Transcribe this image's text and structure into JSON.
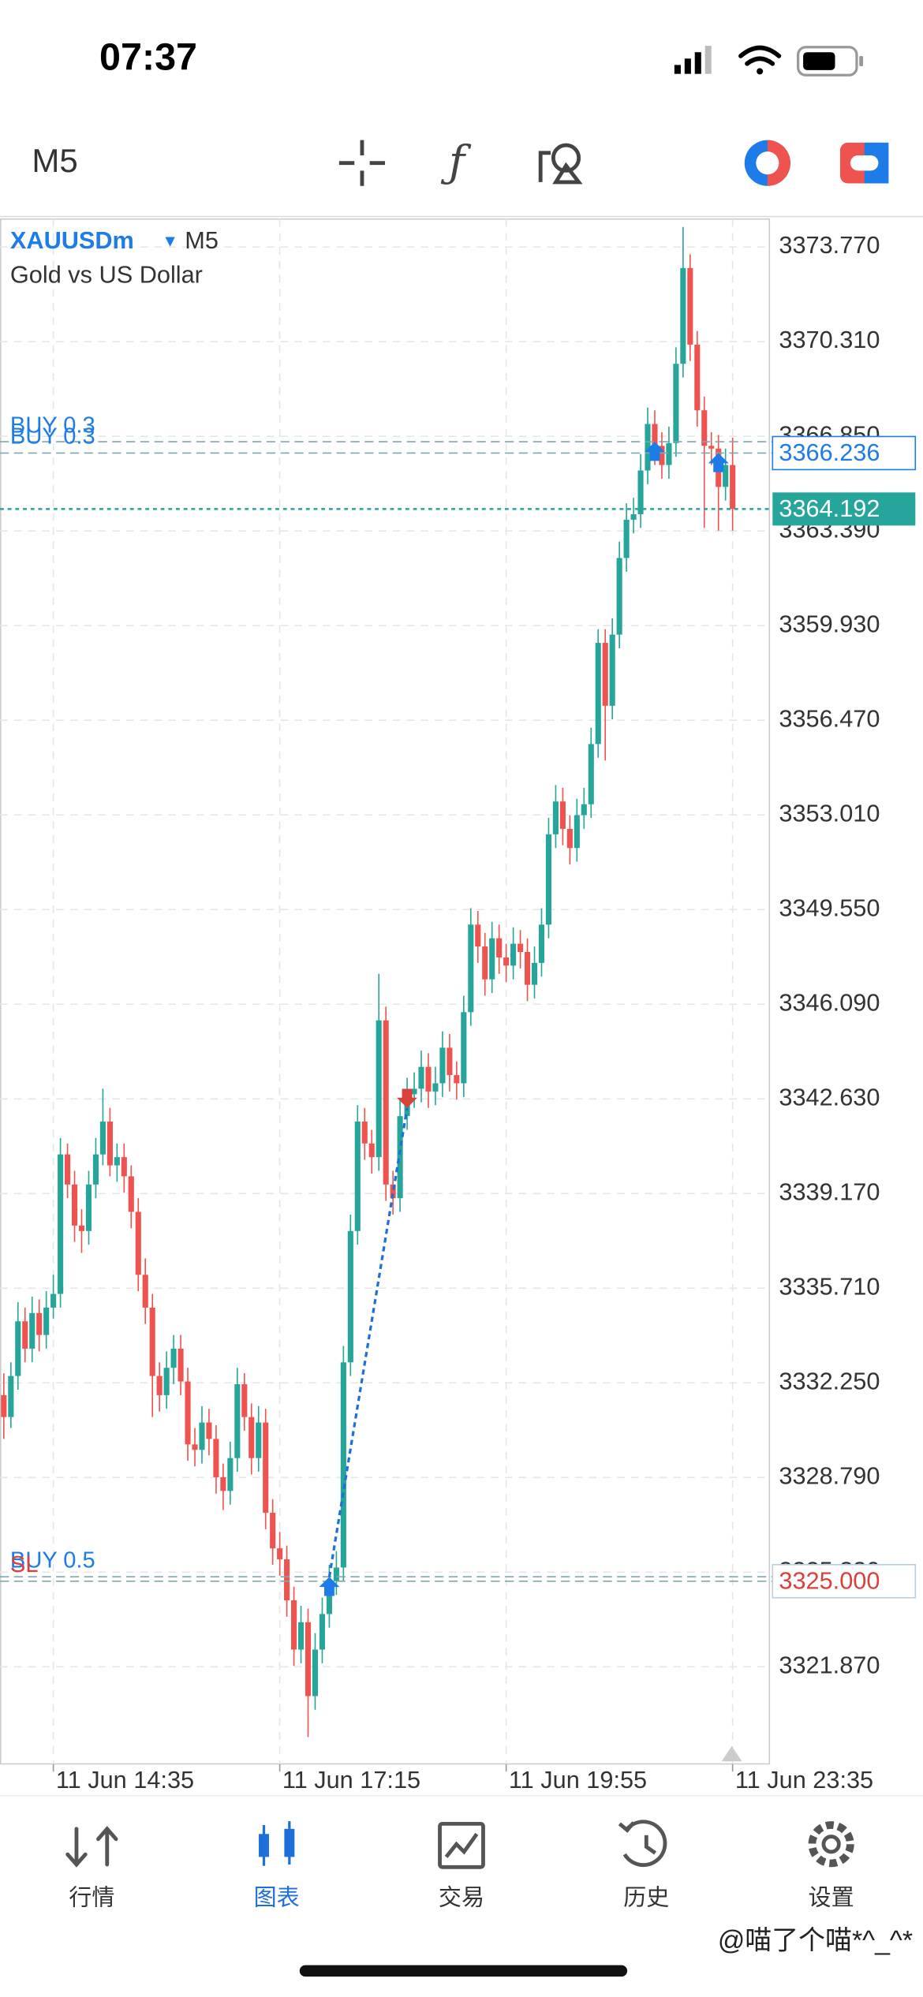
{
  "status_bar": {
    "time": "07:37"
  },
  "toolbar": {
    "timeframe": "M5"
  },
  "chart_data": {
    "type": "candlestick",
    "symbol": "XAUUSDm",
    "timeframe": "M5",
    "description": "Gold vs US Dollar",
    "categories": [
      null,
      null,
      null,
      null,
      null,
      null,
      null,
      "11 Jun 14:35",
      null,
      null,
      null,
      null,
      null,
      null,
      null,
      null,
      null,
      null,
      null,
      null,
      null,
      null,
      null,
      null,
      null,
      null,
      null,
      null,
      null,
      null,
      null,
      null,
      null,
      null,
      null,
      null,
      null,
      null,
      null,
      "11 Jun 17:15",
      null,
      null,
      null,
      null,
      null,
      null,
      null,
      null,
      null,
      null,
      null,
      null,
      null,
      null,
      null,
      null,
      null,
      null,
      null,
      null,
      null,
      null,
      null,
      null,
      null,
      null,
      null,
      null,
      null,
      null,
      null,
      "11 Jun 19:55",
      null,
      null,
      null,
      null,
      null,
      null,
      null,
      null,
      null,
      null,
      null,
      null,
      null,
      null,
      null,
      null,
      null,
      null,
      null,
      null,
      null,
      null,
      null,
      null,
      null,
      null,
      null,
      null,
      null,
      null,
      null,
      "11 Jun 23:35"
    ],
    "open": [
      3331.8,
      3331.0,
      3332.5,
      3334.5,
      3333.5,
      3334.8,
      3334.0,
      3335.0,
      3335.5,
      3340.6,
      3339.5,
      3338.0,
      3337.8,
      3339.5,
      3340.6,
      3341.8,
      3340.2,
      3340.5,
      3339.8,
      3338.5,
      3336.2,
      3335.0,
      3332.5,
      3331.8,
      3332.8,
      3333.5,
      3332.3,
      3330.0,
      3329.8,
      3330.8,
      3330.2,
      3328.8,
      3328.3,
      3329.5,
      3332.2,
      3331.0,
      3329.5,
      3330.8,
      3327.5,
      3326.2,
      3325.8,
      3324.3,
      3322.5,
      3323.5,
      3320.8,
      3322.5,
      3323.8,
      3325.0,
      3325.5,
      3333.0,
      3337.8,
      3341.8,
      3341.0,
      3340.5,
      3345.5,
      3339.5,
      3339.0,
      3342.0,
      3342.8,
      3343.0,
      3343.8,
      3342.9,
      3343.2,
      3344.5,
      3343.5,
      3343.2,
      3345.8,
      3349.0,
      3348.2,
      3347.0,
      3348.5,
      3347.8,
      3347.5,
      3348.3,
      3348.0,
      3346.8,
      3347.6,
      3349.0,
      3352.3,
      3353.5,
      3352.5,
      3351.8,
      3353.0,
      3353.4,
      3355.6,
      3359.3,
      3357.0,
      3359.6,
      3362.4,
      3363.8,
      3364.0,
      3365.6,
      3367.3,
      3366.5,
      3365.8,
      3366.6,
      3369.5,
      3373.0,
      3370.2,
      3367.8,
      3366.5,
      3366.4,
      3365.0,
      3365.8
    ],
    "high": [
      3332.6,
      3333.0,
      3335.2,
      3335.0,
      3335.4,
      3335.3,
      3335.6,
      3336.2,
      3341.2,
      3341.0,
      3340.0,
      3338.6,
      3340.0,
      3341.2,
      3343.0,
      3342.3,
      3341.0,
      3341.0,
      3340.2,
      3339.0,
      3336.8,
      3335.5,
      3333.0,
      3333.4,
      3334.0,
      3334.0,
      3332.8,
      3330.6,
      3331.4,
      3331.3,
      3330.7,
      3329.3,
      3330.1,
      3332.8,
      3332.6,
      3331.5,
      3331.4,
      3331.3,
      3328.0,
      3326.8,
      3326.3,
      3324.8,
      3324.1,
      3324.0,
      3323.1,
      3324.4,
      3325.6,
      3326.1,
      3333.6,
      3338.4,
      3342.4,
      3342.3,
      3341.5,
      3347.2,
      3346.0,
      3340.0,
      3342.6,
      3343.4,
      3343.6,
      3344.4,
      3344.3,
      3343.8,
      3345.1,
      3345.0,
      3344.0,
      3346.4,
      3349.6,
      3349.5,
      3348.7,
      3349.1,
      3349.0,
      3348.3,
      3348.9,
      3348.8,
      3348.5,
      3348.2,
      3349.6,
      3352.9,
      3354.1,
      3354.0,
      3353.0,
      3353.6,
      3354.0,
      3356.2,
      3359.8,
      3359.8,
      3360.2,
      3363.0,
      3364.4,
      3364.6,
      3366.2,
      3367.9,
      3367.8,
      3367.0,
      3367.2,
      3370.1,
      3374.5,
      3373.5,
      3370.7,
      3368.3,
      3367.0,
      3366.9,
      3366.4,
      3366.8
    ],
    "low": [
      3330.2,
      3330.6,
      3332.0,
      3333.0,
      3333.0,
      3333.4,
      3333.5,
      3334.6,
      3335.0,
      3339.0,
      3337.4,
      3337.0,
      3337.3,
      3339.0,
      3340.2,
      3339.8,
      3339.6,
      3339.2,
      3337.9,
      3335.6,
      3334.4,
      3331.0,
      3331.2,
      3331.3,
      3332.2,
      3331.8,
      3329.4,
      3329.2,
      3329.3,
      3329.6,
      3328.2,
      3327.6,
      3327.8,
      3329.0,
      3330.5,
      3328.9,
      3329.0,
      3326.9,
      3325.6,
      3325.2,
      3323.7,
      3321.9,
      3322.0,
      3319.3,
      3320.3,
      3322.0,
      3323.3,
      3324.5,
      3325.0,
      3332.5,
      3337.3,
      3340.4,
      3339.9,
      3340.0,
      3338.9,
      3338.4,
      3338.5,
      3341.5,
      3342.3,
      3342.5,
      3342.3,
      3342.4,
      3342.7,
      3342.9,
      3342.6,
      3342.7,
      3345.3,
      3347.6,
      3346.4,
      3346.5,
      3347.2,
      3346.9,
      3347.0,
      3347.4,
      3346.2,
      3346.3,
      3347.1,
      3348.5,
      3351.8,
      3351.9,
      3351.2,
      3351.3,
      3352.5,
      3352.9,
      3355.1,
      3355.0,
      3356.5,
      3359.1,
      3361.9,
      3363.3,
      3363.5,
      3365.1,
      3365.8,
      3365.3,
      3365.3,
      3366.1,
      3369.0,
      3369.6,
      3367.2,
      3363.5,
      3365.8,
      3363.4,
      3364.5,
      3363.4
    ],
    "close": [
      3331.0,
      3332.5,
      3334.5,
      3333.5,
      3334.8,
      3334.0,
      3335.0,
      3335.5,
      3340.6,
      3339.5,
      3338.0,
      3337.8,
      3339.5,
      3340.6,
      3341.8,
      3340.2,
      3340.5,
      3339.8,
      3338.5,
      3336.2,
      3335.0,
      3332.5,
      3331.8,
      3332.8,
      3333.5,
      3332.3,
      3330.0,
      3329.8,
      3330.8,
      3330.2,
      3328.8,
      3328.3,
      3329.5,
      3332.2,
      3331.0,
      3329.5,
      3330.8,
      3327.5,
      3326.2,
      3325.8,
      3324.3,
      3322.5,
      3323.5,
      3320.8,
      3322.5,
      3323.8,
      3325.0,
      3325.5,
      3333.0,
      3337.8,
      3341.8,
      3341.0,
      3340.5,
      3345.5,
      3339.5,
      3339.0,
      3342.0,
      3342.8,
      3343.0,
      3343.8,
      3342.9,
      3343.2,
      3344.5,
      3343.5,
      3343.2,
      3345.8,
      3349.0,
      3348.2,
      3347.0,
      3348.5,
      3347.8,
      3347.5,
      3348.3,
      3348.0,
      3346.8,
      3347.6,
      3349.0,
      3352.3,
      3353.5,
      3352.5,
      3351.8,
      3353.0,
      3353.4,
      3355.6,
      3359.3,
      3357.0,
      3359.6,
      3362.4,
      3363.8,
      3364.0,
      3365.6,
      3367.3,
      3366.5,
      3365.8,
      3366.6,
      3369.5,
      3373.0,
      3370.2,
      3367.8,
      3366.5,
      3366.4,
      3365.0,
      3365.8,
      3364.192
    ],
    "up_color": "#26a69a",
    "down_color": "#ef5350",
    "ylim": [
      3318.32,
      3374.79
    ],
    "yticks": [
      {
        "value": 3373.77,
        "label": "3373.770"
      },
      {
        "value": 3370.31,
        "label": "3370.310"
      },
      {
        "value": 3366.85,
        "label": "3366.850"
      },
      {
        "value": 3363.39,
        "label": "3363.390"
      },
      {
        "value": 3359.93,
        "label": "3359.930"
      },
      {
        "value": 3356.47,
        "label": "3356.470"
      },
      {
        "value": 3353.01,
        "label": "3353.010"
      },
      {
        "value": 3349.55,
        "label": "3349.550"
      },
      {
        "value": 3346.09,
        "label": "3346.090"
      },
      {
        "value": 3342.63,
        "label": "3342.630"
      },
      {
        "value": 3339.17,
        "label": "3339.170"
      },
      {
        "value": 3335.71,
        "label": "3335.710"
      },
      {
        "value": 3332.25,
        "label": "3332.250"
      },
      {
        "value": 3328.79,
        "label": "3328.790"
      },
      {
        "value": 3325.33,
        "label": "3325.330"
      },
      {
        "value": 3321.87,
        "label": "3321.870"
      }
    ],
    "grid": true,
    "price_lines": [
      {
        "label": "BUY 0.3",
        "value": 3366.65,
        "color": "#1e7ce8"
      },
      {
        "label": "BUY 0.3",
        "value": 3366.236,
        "value_label": "3366.236",
        "color": "#1e7ce8"
      },
      {
        "label": "BUY 0.5",
        "value": 3325.16,
        "color": "#1e7ce8"
      },
      {
        "label": "SL",
        "value": 3325.0,
        "value_label": "3325.000",
        "color": "#d9423a"
      }
    ],
    "current_price": {
      "value": 3364.192,
      "value_label": "3364.192",
      "color": "#26a69a"
    },
    "markers": [
      {
        "index": 46,
        "value": 3325.16,
        "direction": "up",
        "color": "#1e7ce8"
      },
      {
        "index": 57,
        "value": 3342.3,
        "direction": "down",
        "color": "#d9423a"
      },
      {
        "index": 92,
        "value": 3366.65,
        "direction": "up",
        "color": "#1e7ce8"
      },
      {
        "index": 101,
        "value": 3366.236,
        "direction": "up",
        "color": "#1e7ce8"
      }
    ]
  },
  "nav": [
    {
      "label": "行情"
    },
    {
      "label": "图表"
    },
    {
      "label": "交易"
    },
    {
      "label": "历史"
    },
    {
      "label": "设置"
    }
  ],
  "active_nav": 1,
  "watermark": "@喵了个喵*^_^*"
}
